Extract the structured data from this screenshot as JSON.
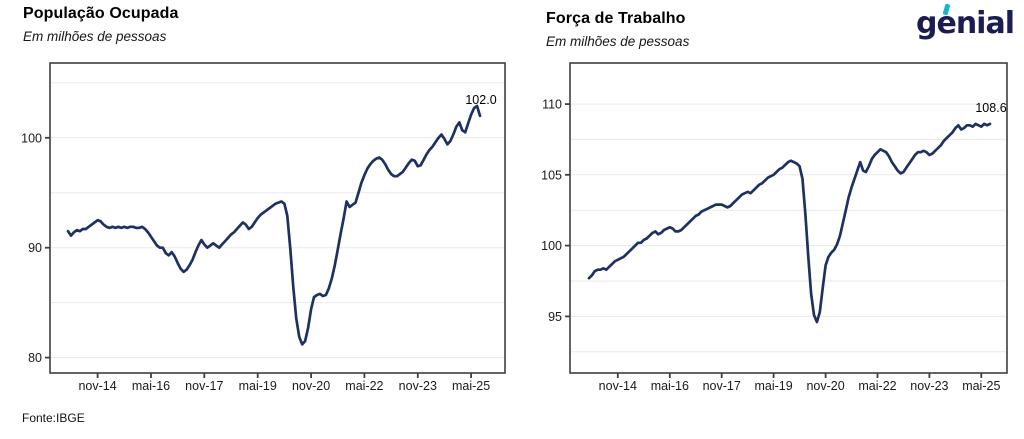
{
  "logo": {
    "text": "genial",
    "navy": "#1a1c52",
    "cyan": "#14b8ce"
  },
  "source_note": "Fonte:IBGE",
  "style": {
    "line_color": "#1e3161",
    "grid_color": "#eaeaea",
    "axis_color": "#3f3f3f",
    "label_color": "#1a1a1a"
  },
  "chart_data": [
    {
      "type": "line",
      "title": "População Ocupada",
      "subtitle": "Em milhões de pessoas",
      "end_label": "102.0",
      "x_tick_labels": [
        "nov-14",
        "mai-16",
        "nov-17",
        "mai-19",
        "nov-20",
        "mai-22",
        "nov-23",
        "mai-25"
      ],
      "x_tick_indices": [
        10,
        28,
        46,
        64,
        82,
        100,
        118,
        136
      ],
      "y_tick_labels": [
        80,
        90,
        100
      ],
      "y_gridlines": [
        80,
        85,
        90,
        95,
        100,
        105
      ],
      "ylim": [
        78.6,
        106.8
      ],
      "grid": true,
      "legend": "none",
      "values": [
        91.5,
        91.1,
        91.4,
        91.6,
        91.5,
        91.7,
        91.7,
        91.9,
        92.1,
        92.3,
        92.5,
        92.4,
        92.1,
        91.9,
        91.8,
        91.9,
        91.8,
        91.9,
        91.8,
        91.9,
        91.8,
        91.9,
        91.9,
        91.8,
        91.8,
        91.9,
        91.7,
        91.4,
        91.0,
        90.6,
        90.2,
        90.0,
        90.0,
        89.5,
        89.3,
        89.6,
        89.2,
        88.6,
        88.1,
        87.8,
        88.0,
        88.4,
        88.9,
        89.6,
        90.2,
        90.7,
        90.3,
        90.0,
        90.2,
        90.4,
        90.2,
        90.0,
        90.3,
        90.6,
        90.9,
        91.2,
        91.4,
        91.7,
        92.0,
        92.3,
        92.1,
        91.7,
        91.9,
        92.3,
        92.7,
        93.0,
        93.2,
        93.4,
        93.6,
        93.8,
        94.0,
        94.1,
        94.2,
        94.0,
        92.9,
        89.9,
        86.4,
        83.6,
        81.9,
        81.2,
        81.5,
        82.7,
        84.4,
        85.5,
        85.7,
        85.8,
        85.6,
        85.7,
        86.3,
        87.2,
        88.4,
        89.8,
        91.3,
        92.7,
        94.2,
        93.7,
        93.9,
        94.1,
        95.0,
        95.9,
        96.6,
        97.2,
        97.6,
        97.9,
        98.1,
        98.2,
        98.0,
        97.6,
        97.1,
        96.7,
        96.5,
        96.5,
        96.7,
        96.9,
        97.3,
        97.7,
        98.0,
        97.9,
        97.4,
        97.5,
        98.0,
        98.5,
        98.9,
        99.2,
        99.6,
        100.0,
        100.3,
        99.9,
        99.4,
        99.7,
        100.3,
        101.0,
        101.4,
        100.7,
        100.5,
        101.3,
        102.1,
        102.7,
        102.9,
        102.0
      ]
    },
    {
      "type": "line",
      "title": "Força de Trabalho",
      "subtitle": "Em milhões de pessoas",
      "end_label": "108.6",
      "x_tick_labels": [
        "nov-14",
        "mai-16",
        "nov-17",
        "mai-19",
        "nov-20",
        "mai-22",
        "nov-23",
        "mai-25"
      ],
      "x_tick_indices": [
        10,
        28,
        46,
        64,
        82,
        100,
        118,
        136
      ],
      "y_tick_labels": [
        95,
        100,
        105,
        110
      ],
      "y_gridlines": [
        92.5,
        95,
        97.5,
        100,
        102.5,
        105,
        107.5,
        110
      ],
      "ylim": [
        91.0,
        112.9
      ],
      "grid": true,
      "legend": "none",
      "values": [
        97.7,
        97.9,
        98.2,
        98.3,
        98.3,
        98.4,
        98.3,
        98.5,
        98.7,
        98.9,
        99.0,
        99.1,
        99.2,
        99.4,
        99.6,
        99.8,
        100.0,
        100.2,
        100.2,
        100.4,
        100.5,
        100.7,
        100.9,
        101.0,
        100.8,
        100.9,
        101.1,
        101.2,
        101.3,
        101.2,
        101.0,
        101.0,
        101.1,
        101.3,
        101.5,
        101.7,
        101.9,
        102.1,
        102.2,
        102.4,
        102.5,
        102.6,
        102.7,
        102.8,
        102.9,
        102.9,
        102.9,
        102.8,
        102.7,
        102.8,
        103.0,
        103.2,
        103.4,
        103.6,
        103.7,
        103.8,
        103.7,
        103.9,
        104.1,
        104.3,
        104.4,
        104.6,
        104.8,
        104.9,
        105.0,
        105.2,
        105.4,
        105.5,
        105.7,
        105.9,
        106.0,
        105.9,
        105.8,
        105.6,
        104.7,
        102.2,
        99.2,
        96.6,
        95.1,
        94.6,
        95.3,
        97.0,
        98.6,
        99.2,
        99.5,
        99.7,
        100.1,
        100.7,
        101.6,
        102.5,
        103.4,
        104.1,
        104.7,
        105.3,
        105.9,
        105.3,
        105.2,
        105.6,
        106.1,
        106.4,
        106.6,
        106.8,
        106.7,
        106.6,
        106.3,
        105.9,
        105.6,
        105.3,
        105.1,
        105.2,
        105.5,
        105.8,
        106.1,
        106.4,
        106.6,
        106.6,
        106.7,
        106.6,
        106.4,
        106.5,
        106.7,
        106.9,
        107.1,
        107.4,
        107.6,
        107.8,
        108.0,
        108.3,
        108.5,
        108.2,
        108.3,
        108.5,
        108.5,
        108.4,
        108.6,
        108.5,
        108.4,
        108.6,
        108.5,
        108.6
      ]
    }
  ]
}
